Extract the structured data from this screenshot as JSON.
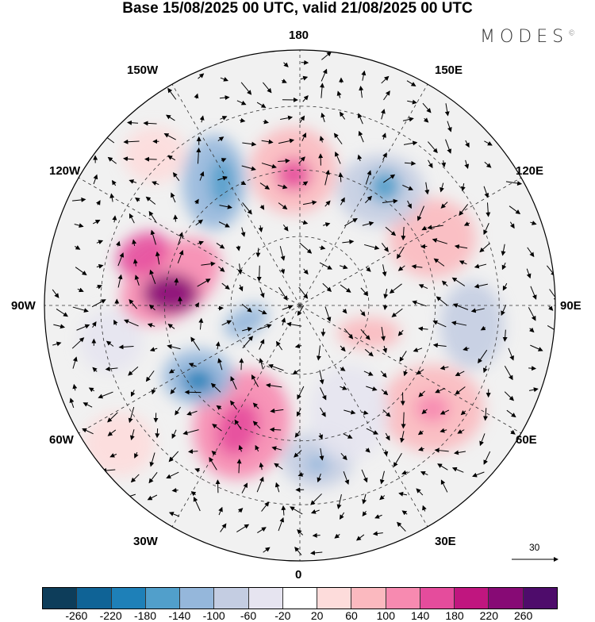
{
  "title": "Base 15/08/2025 00 UTC, valid 21/08/2025 00 UTC",
  "logo": "MODES",
  "logo_mark": "©",
  "longitude_labels": {
    "top": "180",
    "bottom": "0",
    "left": "90W",
    "right": "90E",
    "upper_left_1": "150W",
    "upper_left_2": "120W",
    "upper_right_1": "150E",
    "upper_right_2": "120E",
    "lower_left_1": "60W",
    "lower_left_2": "30W",
    "lower_right_1": "60E",
    "lower_right_2": "30E"
  },
  "reference_vector": "30",
  "colorbar": {
    "colors": [
      "#0d3d5a",
      "#0f6396",
      "#1e80b8",
      "#519fcb",
      "#95b7db",
      "#c4cde2",
      "#e6e4f0",
      "#ffffff",
      "#fddcdb",
      "#fbb9bf",
      "#f78ab0",
      "#e54c9c",
      "#c0167f",
      "#870a75",
      "#4e0c6b"
    ],
    "labels": [
      "-260",
      "-220",
      "-180",
      "-140",
      "-100",
      "-60",
      "-20",
      "20",
      "60",
      "100",
      "140",
      "180",
      "220",
      "260"
    ]
  }
}
